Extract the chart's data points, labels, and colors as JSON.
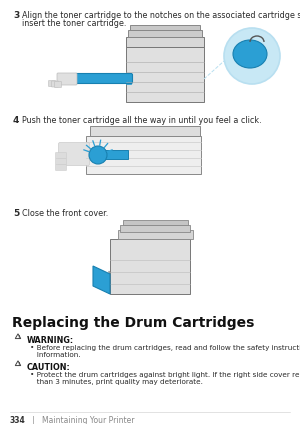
{
  "bg_color": "#ffffff",
  "step3_number": "3",
  "step3_text_line1": "Align the toner cartridge to the notches on the associated cartridge slot, and then",
  "step3_text_line2": "insert the toner cartridge.",
  "step4_number": "4",
  "step4_text": "Push the toner cartridge all the way in until you feel a click.",
  "step5_number": "5",
  "step5_text": "Close the front cover.",
  "section_title": "Replacing the Drum Cartridges",
  "warning_label": "WARNING:",
  "warning_bullet": "• Before replacing the drum cartridges, read and follow the safety instructions in the Important",
  "warning_bullet2": "   Information.",
  "caution_label": "CAUTION:",
  "caution_bullet": "• Protect the drum cartridges against bright light. If the right side cover remains open for more",
  "caution_bullet2": "   than 3 minutes, print quality may deteriorate.",
  "footer_page": "334",
  "footer_sep": "|",
  "footer_text": "Maintaining Your Printer",
  "text_color": "#2a2a2a",
  "gray_mid": "#666666",
  "gray_light": "#aaaaaa",
  "gray_printer": "#e0e0e0",
  "gray_dark": "#888888",
  "blue_color": "#2b9fd4",
  "blue_light": "#b8dff0",
  "blue_circle": "#c8e8f5"
}
